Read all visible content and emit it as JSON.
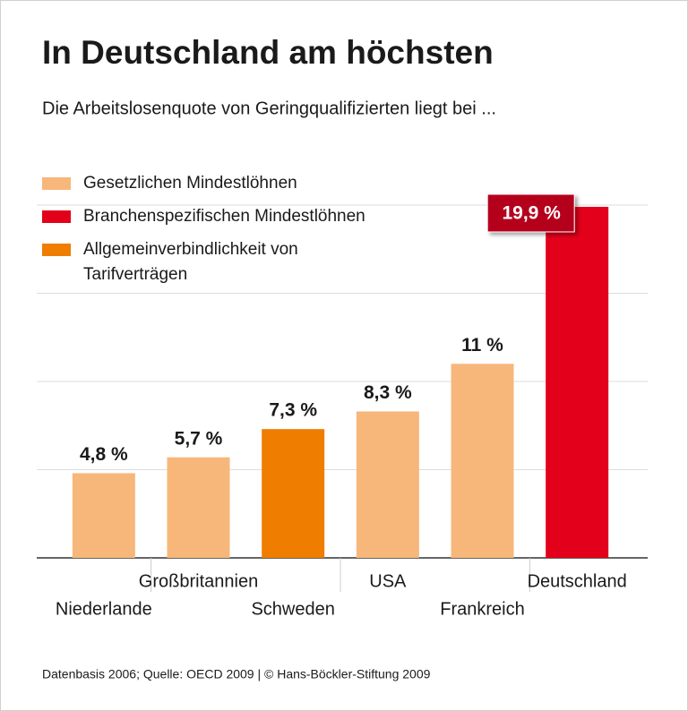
{
  "chart_data": {
    "type": "bar",
    "title": "In Deutschland am höchsten",
    "subtitle": "Die Arbeitslosenquote von Geringqualifizierten liegt bei ...",
    "categories": [
      "Niederlande",
      "Großbritannien",
      "Schweden",
      "USA",
      "Frankreich",
      "Deutschland"
    ],
    "values": [
      4.8,
      5.7,
      7.3,
      8.3,
      11,
      19.9
    ],
    "value_labels": [
      "4,8 %",
      "5,7 %",
      "7,3 %",
      "8,3 %",
      "11 %",
      "19,9 %"
    ],
    "colors": [
      "#f7b77a",
      "#f7b77a",
      "#ef7d00",
      "#f7b77a",
      "#f7b77a",
      "#e2001a"
    ],
    "legend": [
      {
        "label": "Gesetzlichen Mindestlöhnen",
        "color": "#f7b77a"
      },
      {
        "label": "Branchenspezifischen Mindestlöhnen",
        "color": "#e2001a"
      },
      {
        "label": "Allgemeinverbindlichkeit von Tarifverträgen",
        "color": "#ef7d00"
      }
    ],
    "ylim": [
      0,
      20
    ],
    "yticks": [
      0,
      5,
      10,
      15,
      20
    ],
    "grid": true,
    "source": "Datenbasis 2006; Quelle: OECD 2009 | © Hans-Böckler-Stiftung 2009"
  }
}
